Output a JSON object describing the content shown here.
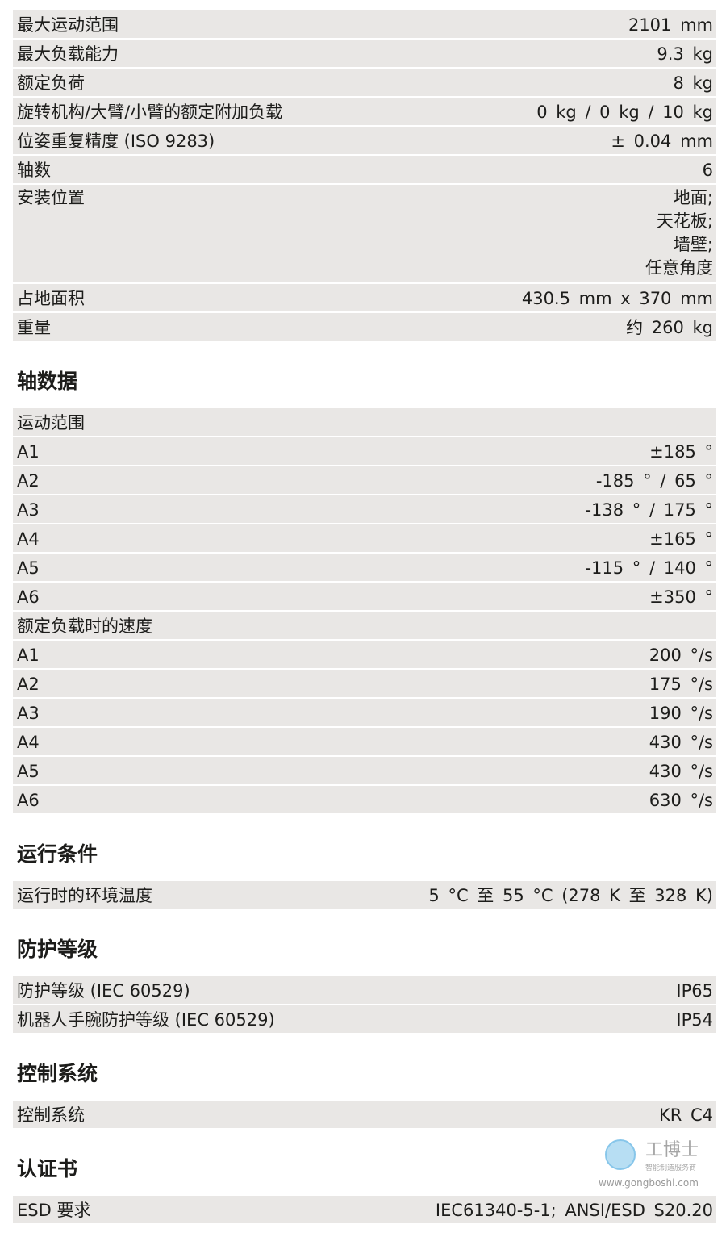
{
  "general": [
    {
      "label": "最大运动范围",
      "value": "2101 mm"
    },
    {
      "label": "最大负载能力",
      "value": "9.3 kg"
    },
    {
      "label": "额定负荷",
      "value": "8 kg"
    },
    {
      "label": "旋转机构/大臂/小臂的额定附加负载",
      "value": "0 kg / 0 kg / 10 kg"
    },
    {
      "label": "位姿重复精度 (ISO 9283)",
      "value": "± 0.04 mm"
    },
    {
      "label": "轴数",
      "value": "6"
    },
    {
      "label": "安装位置",
      "value": "地面;\n天花板;\n墙壁;\n任意角度"
    },
    {
      "label": "占地面积",
      "value": "430.5 mm x 370 mm"
    },
    {
      "label": "重量",
      "value": "约 260 kg"
    }
  ],
  "sections": [
    {
      "title": "轴数据",
      "rows": [
        {
          "label": "运动范围",
          "value": ""
        },
        {
          "label": "A1",
          "value": "±185 °"
        },
        {
          "label": "A2",
          "value": "-185 ° / 65 °"
        },
        {
          "label": "A3",
          "value": "-138 ° / 175 °"
        },
        {
          "label": "A4",
          "value": "±165 °"
        },
        {
          "label": "A5",
          "value": "-115 ° / 140 °"
        },
        {
          "label": "A6",
          "value": "±350 °"
        },
        {
          "label": "额定负载时的速度",
          "value": ""
        },
        {
          "label": "A1",
          "value": "200 °/s"
        },
        {
          "label": "A2",
          "value": "175 °/s"
        },
        {
          "label": "A3",
          "value": "190 °/s"
        },
        {
          "label": "A4",
          "value": "430 °/s"
        },
        {
          "label": "A5",
          "value": "430 °/s"
        },
        {
          "label": "A6",
          "value": "630 °/s"
        }
      ]
    },
    {
      "title": "运行条件",
      "rows": [
        {
          "label": "运行时的环境温度",
          "value": "5 °C 至 55 °C (278 K 至 328 K)"
        }
      ]
    },
    {
      "title": "防护等级",
      "rows": [
        {
          "label": "防护等级 (IEC 60529)",
          "value": "IP65"
        },
        {
          "label": "机器人手腕防护等级 (IEC 60529)",
          "value": "IP54"
        }
      ]
    },
    {
      "title": "控制系统",
      "rows": [
        {
          "label": "控制系统",
          "value": "KR C4"
        }
      ]
    },
    {
      "title": "认证书",
      "rows": [
        {
          "label": "ESD 要求",
          "value": "IEC61340-5-1; ANSI/ESD S20.20"
        }
      ]
    }
  ],
  "watermark": {
    "logo": "工博士",
    "tagline": "智能制造服务商",
    "url": "www.gongboshi.com"
  },
  "colors": {
    "row_bg": "#e9e7e5",
    "text": "#1d1d1b"
  }
}
